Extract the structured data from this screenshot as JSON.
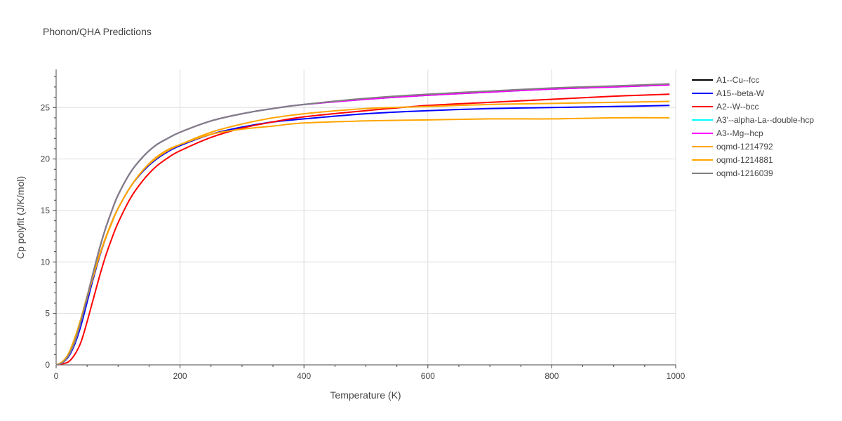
{
  "chart_data": {
    "type": "line",
    "title": "Phonon/QHA Predictions",
    "xlabel": "Temperature (K)",
    "ylabel": "Cp polyfit (J/K/mol)",
    "xlim": [
      0,
      1000
    ],
    "ylim": [
      0,
      28.7
    ],
    "xticks": [
      0,
      200,
      400,
      600,
      800,
      1000
    ],
    "yticks": [
      0,
      5,
      10,
      15,
      20,
      25
    ],
    "grid": true,
    "legend_position": "right",
    "series": [
      {
        "name": "A1--Cu--fcc",
        "color": "#000000",
        "x": [
          0,
          10,
          20,
          30,
          40,
          50,
          60,
          70,
          80,
          90,
          100,
          120,
          140,
          160,
          180,
          200,
          250,
          300,
          350,
          400,
          500,
          600,
          700,
          800,
          900,
          990
        ],
        "y": [
          0,
          0.2,
          0.9,
          2.2,
          4.2,
          6.6,
          9.0,
          11.3,
          13.3,
          15.0,
          16.5,
          18.7,
          20.2,
          21.3,
          22.0,
          22.6,
          23.7,
          24.4,
          24.9,
          25.3,
          25.8,
          26.2,
          26.5,
          26.8,
          27.0,
          27.2
        ]
      },
      {
        "name": "A15--beta-W",
        "color": "#0000ff",
        "x": [
          0,
          10,
          20,
          30,
          40,
          50,
          60,
          70,
          80,
          90,
          100,
          120,
          140,
          160,
          180,
          200,
          250,
          300,
          350,
          400,
          500,
          600,
          700,
          800,
          900,
          990
        ],
        "y": [
          0,
          0.2,
          0.8,
          2.0,
          3.8,
          6.1,
          8.4,
          10.5,
          12.3,
          13.9,
          15.2,
          17.3,
          18.8,
          19.9,
          20.7,
          21.3,
          22.4,
          23.1,
          23.6,
          23.9,
          24.4,
          24.7,
          24.9,
          25.0,
          25.1,
          25.2
        ]
      },
      {
        "name": "A2--W--bcc",
        "color": "#ff0000",
        "x": [
          0,
          10,
          20,
          30,
          40,
          50,
          60,
          70,
          80,
          90,
          100,
          120,
          140,
          160,
          180,
          200,
          250,
          300,
          350,
          400,
          500,
          600,
          700,
          800,
          900,
          990
        ],
        "y": [
          0,
          0.1,
          0.3,
          1.0,
          2.2,
          4.2,
          6.4,
          8.6,
          10.6,
          12.3,
          13.8,
          16.2,
          17.9,
          19.2,
          20.1,
          20.8,
          22.1,
          23.0,
          23.6,
          24.1,
          24.7,
          25.2,
          25.5,
          25.8,
          26.1,
          26.3
        ]
      },
      {
        "name": "A3'--alpha-La--double-hcp",
        "color": "#00ffff",
        "x": [
          0,
          10,
          20,
          30,
          40,
          50,
          60,
          70,
          80,
          90,
          100,
          120,
          140,
          160,
          180,
          200,
          250,
          300,
          350,
          400,
          500,
          600,
          700,
          800,
          900,
          990
        ],
        "y": [
          0,
          0.2,
          0.9,
          2.2,
          4.2,
          6.6,
          9.0,
          11.3,
          13.3,
          15.0,
          16.5,
          18.7,
          20.2,
          21.3,
          22.0,
          22.6,
          23.7,
          24.4,
          24.9,
          25.3,
          25.8,
          26.2,
          26.5,
          26.8,
          27.0,
          27.2
        ]
      },
      {
        "name": "A3--Mg--hcp",
        "color": "#ff00ff",
        "x": [
          0,
          10,
          20,
          30,
          40,
          50,
          60,
          70,
          80,
          90,
          100,
          120,
          140,
          160,
          180,
          200,
          250,
          300,
          350,
          400,
          500,
          600,
          700,
          800,
          900,
          990
        ],
        "y": [
          0,
          0.2,
          0.9,
          2.2,
          4.2,
          6.6,
          9.0,
          11.3,
          13.3,
          15.0,
          16.5,
          18.7,
          20.2,
          21.3,
          22.0,
          22.6,
          23.7,
          24.4,
          24.9,
          25.3,
          25.8,
          26.2,
          26.5,
          26.8,
          27.0,
          27.2
        ]
      },
      {
        "name": "oqmd-1214792",
        "color": "#ffa500",
        "x": [
          0,
          10,
          20,
          30,
          40,
          50,
          60,
          70,
          80,
          90,
          100,
          120,
          140,
          160,
          180,
          200,
          250,
          300,
          350,
          400,
          500,
          600,
          700,
          800,
          900,
          990
        ],
        "y": [
          0,
          0.3,
          1.1,
          2.6,
          4.5,
          6.7,
          8.8,
          10.7,
          12.4,
          13.9,
          15.2,
          17.3,
          18.9,
          20.0,
          20.8,
          21.4,
          22.6,
          23.4,
          24.0,
          24.4,
          24.9,
          25.1,
          25.3,
          25.4,
          25.5,
          25.6
        ]
      },
      {
        "name": "oqmd-1214881",
        "color": "#ffa500",
        "x": [
          0,
          10,
          20,
          30,
          40,
          50,
          60,
          70,
          80,
          90,
          100,
          120,
          140,
          160,
          180,
          200,
          250,
          300,
          350,
          400,
          500,
          600,
          700,
          800,
          900,
          990
        ],
        "y": [
          0,
          0.3,
          1.0,
          2.4,
          4.3,
          6.5,
          8.6,
          10.6,
          12.3,
          13.8,
          15.2,
          17.3,
          18.9,
          20.1,
          20.9,
          21.4,
          22.4,
          22.9,
          23.2,
          23.5,
          23.7,
          23.8,
          23.9,
          23.9,
          24.0,
          24.0
        ]
      },
      {
        "name": "oqmd-1216039",
        "color": "#808080",
        "x": [
          0,
          10,
          20,
          30,
          40,
          50,
          60,
          70,
          80,
          90,
          100,
          120,
          140,
          160,
          180,
          200,
          250,
          300,
          350,
          400,
          500,
          600,
          700,
          800,
          900,
          990
        ],
        "y": [
          0,
          0.2,
          0.9,
          2.2,
          4.2,
          6.6,
          9.0,
          11.3,
          13.3,
          15.0,
          16.5,
          18.7,
          20.2,
          21.3,
          22.0,
          22.6,
          23.7,
          24.4,
          24.9,
          25.3,
          25.9,
          26.3,
          26.6,
          26.9,
          27.1,
          27.3
        ]
      }
    ]
  }
}
